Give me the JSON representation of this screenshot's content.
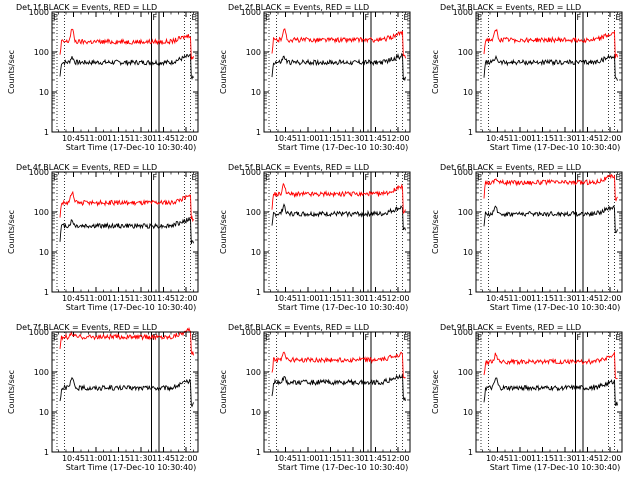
{
  "chart_data": {
    "type": "line",
    "y_scale": "log",
    "ylim": [
      1,
      1000
    ],
    "x_range": [
      "10:30:40",
      "12:08:00"
    ],
    "grid": false,
    "legend": "title",
    "ylabel": "Counts/sec",
    "xlabel": "Start Time (17-Dec-10 10:30:40)",
    "x_ticks": [
      "10:45",
      "11:00",
      "11:15",
      "11:30",
      "11:45",
      "12:00"
    ],
    "y_ticks": [
      "1",
      "10",
      "100",
      "1000"
    ],
    "markers": [
      {
        "label": "E",
        "time": "10:30:40"
      },
      {
        "label": "F",
        "time": "11:37:00"
      },
      {
        "label": "E",
        "time": "12:03:00"
      }
    ],
    "dotted_lines": [
      "10:34:00",
      "10:39:00",
      "11:59:00",
      "12:03:00"
    ],
    "solid_lines": [
      "11:37:00",
      "11:42:00"
    ],
    "colors": {
      "events": "#000000",
      "lld": "#ff0000"
    },
    "panels": [
      {
        "title": "Det 1f BLACK = Events, RED = LLD",
        "series": [
          {
            "name": "Events",
            "color": "#000000",
            "base": 55,
            "peak": 75
          },
          {
            "name": "LLD",
            "color": "#ff0000",
            "base": 180,
            "peak": 380
          }
        ]
      },
      {
        "title": "Det 2f BLACK = Events, RED = LLD",
        "series": [
          {
            "name": "Events",
            "color": "#000000",
            "base": 55,
            "peak": 75
          },
          {
            "name": "LLD",
            "color": "#ff0000",
            "base": 200,
            "peak": 380
          }
        ]
      },
      {
        "title": "Det 3f BLACK = Events, RED = LLD",
        "series": [
          {
            "name": "Events",
            "color": "#000000",
            "base": 55,
            "peak": 75
          },
          {
            "name": "LLD",
            "color": "#ff0000",
            "base": 200,
            "peak": 350
          }
        ]
      },
      {
        "title": "Det 4f BLACK = Events, RED = LLD",
        "series": [
          {
            "name": "Events",
            "color": "#000000",
            "base": 45,
            "peak": 60
          },
          {
            "name": "LLD",
            "color": "#ff0000",
            "base": 170,
            "peak": 300
          }
        ]
      },
      {
        "title": "Det 5f BLACK = Events, RED = LLD",
        "series": [
          {
            "name": "Events",
            "color": "#000000",
            "base": 90,
            "peak": 150
          },
          {
            "name": "LLD",
            "color": "#ff0000",
            "base": 280,
            "peak": 500
          }
        ]
      },
      {
        "title": "Det 6f BLACK = Events, RED = LLD",
        "series": [
          {
            "name": "Events",
            "color": "#000000",
            "base": 90,
            "peak": 130
          },
          {
            "name": "LLD",
            "color": "#ff0000",
            "base": 550,
            "peak": 700
          }
        ]
      },
      {
        "title": "Det 7f BLACK = Events, RED = LLD",
        "series": [
          {
            "name": "Events",
            "color": "#000000",
            "base": 40,
            "peak": 70
          },
          {
            "name": "LLD",
            "color": "#ff0000",
            "base": 750,
            "peak": 900
          }
        ]
      },
      {
        "title": "Det 8f BLACK = Events, RED = LLD",
        "series": [
          {
            "name": "Events",
            "color": "#000000",
            "base": 55,
            "peak": 75
          },
          {
            "name": "LLD",
            "color": "#ff0000",
            "base": 200,
            "peak": 330
          }
        ]
      },
      {
        "title": "Det 9f BLACK = Events, RED = LLD",
        "series": [
          {
            "name": "Events",
            "color": "#000000",
            "base": 40,
            "peak": 70
          },
          {
            "name": "LLD",
            "color": "#ff0000",
            "base": 180,
            "peak": 280
          }
        ]
      }
    ]
  }
}
